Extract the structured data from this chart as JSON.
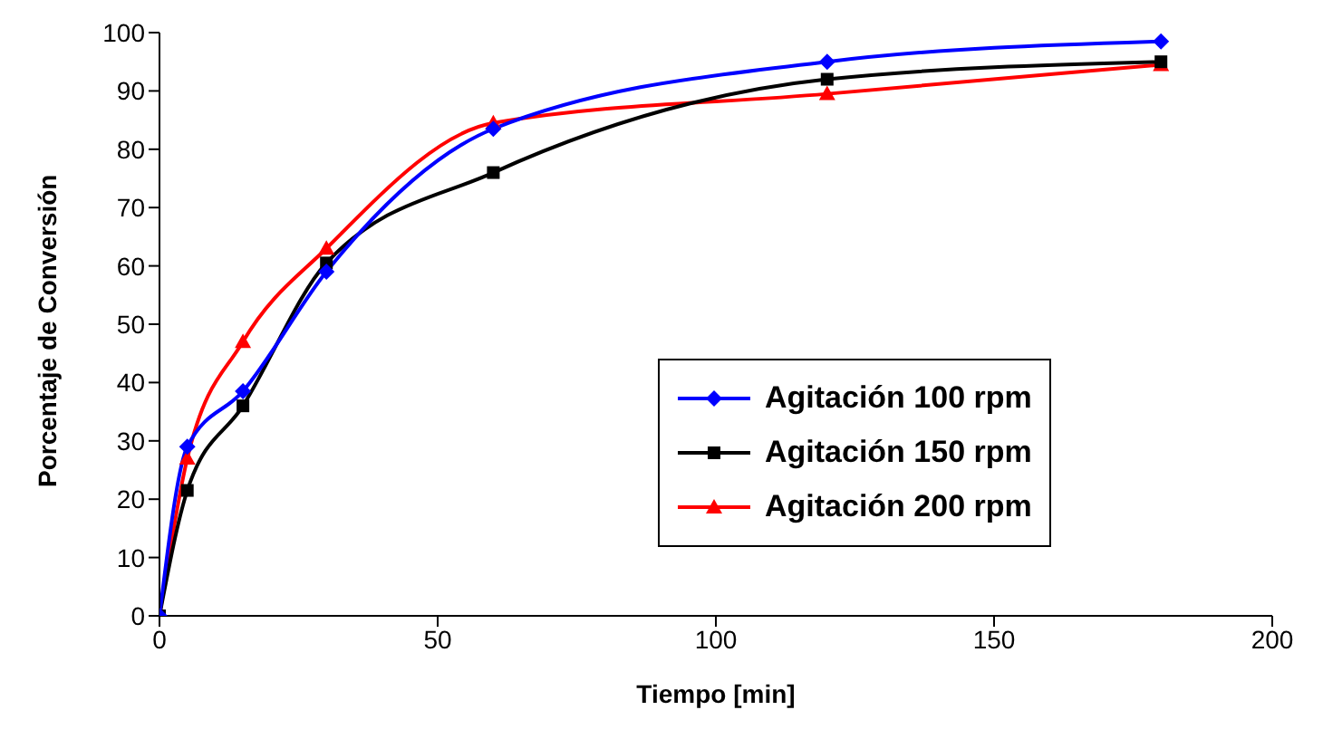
{
  "chart_data": {
    "type": "line",
    "xlabel": "Tiempo [min]",
    "ylabel": "Porcentaje de Conversión",
    "xlim": [
      0,
      200
    ],
    "xticks": [
      0,
      50,
      100,
      150,
      200
    ],
    "ylim": [
      0,
      100
    ],
    "yticks": [
      0,
      10,
      20,
      30,
      40,
      50,
      60,
      70,
      80,
      90,
      100
    ],
    "grid": false,
    "legend": "right",
    "x": [
      0,
      5,
      15,
      30,
      60,
      120,
      180
    ],
    "series": [
      {
        "name": "Agitación 100 rpm",
        "color": "#0000ff",
        "marker": "diamond",
        "values": [
          0,
          29,
          38.5,
          59,
          83.5,
          95,
          98.5
        ]
      },
      {
        "name": "Agitación 150 rpm",
        "color": "#000000",
        "marker": "square",
        "values": [
          0,
          21.5,
          36,
          60.5,
          76,
          92,
          95
        ]
      },
      {
        "name": "Agitación 200 rpm",
        "color": "#ff0000",
        "marker": "triangle",
        "values": [
          0,
          27,
          47,
          63,
          84.5,
          89.5,
          94.5
        ]
      }
    ]
  }
}
